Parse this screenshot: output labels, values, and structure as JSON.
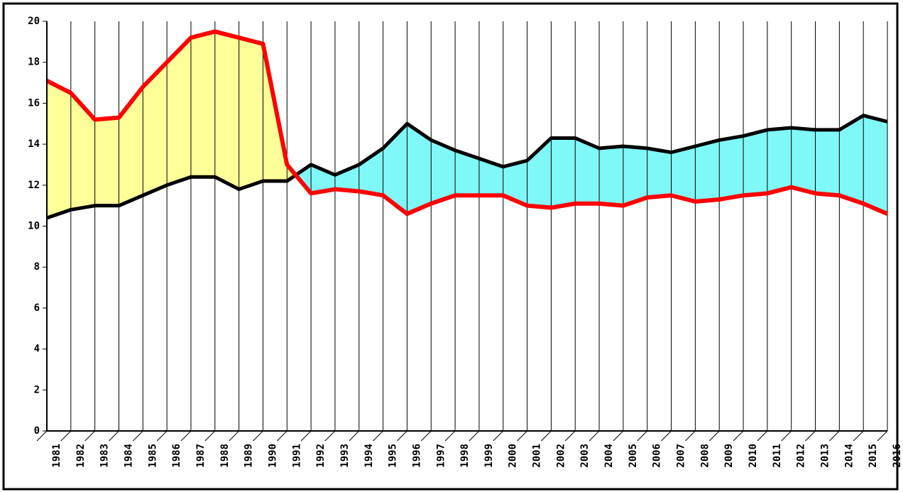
{
  "chart_data": {
    "type": "line",
    "categories": [
      "1981",
      "1982",
      "1983",
      "1984",
      "1985",
      "1986",
      "1987",
      "1988",
      "1989",
      "1990",
      "1991",
      "1992",
      "1993",
      "1994",
      "1995",
      "1996",
      "1997",
      "1998",
      "1999",
      "2000",
      "2001",
      "2002",
      "2003",
      "2004",
      "2005",
      "2006",
      "2007",
      "2008",
      "2009",
      "2010",
      "2011",
      "2012",
      "2013",
      "2014",
      "2015",
      "2016"
    ],
    "series": [
      {
        "color": "#ff0000",
        "fill": "#ffff99",
        "values": [
          17.1,
          16.5,
          15.2,
          15.3,
          16.8,
          18.0,
          19.2,
          19.5,
          19.2,
          18.9,
          13.0,
          11.6,
          11.8,
          11.7,
          11.5,
          10.6,
          11.1,
          11.5,
          11.5,
          11.5,
          11.0,
          10.9,
          11.1,
          11.1,
          11.0,
          11.4,
          11.5,
          11.2,
          11.3,
          11.5,
          11.6,
          11.9,
          11.6,
          11.5,
          11.1,
          10.6
        ]
      },
      {
        "color": "#000000",
        "fill": "#80f8f8",
        "values": [
          10.4,
          10.8,
          11.0,
          11.0,
          11.5,
          12.0,
          12.4,
          12.4,
          11.8,
          12.2,
          12.2,
          13.0,
          12.5,
          13.0,
          13.8,
          15.0,
          14.2,
          13.7,
          13.3,
          12.9,
          13.2,
          14.3,
          14.3,
          13.8,
          13.9,
          13.8,
          13.6,
          13.9,
          14.2,
          14.4,
          14.7,
          14.8,
          14.7,
          14.7,
          15.4,
          15.1
        ]
      }
    ],
    "ylim": [
      0,
      20
    ],
    "yticks": [
      0,
      2,
      4,
      6,
      8,
      10,
      12,
      14,
      16,
      18,
      20
    ],
    "grid": true
  }
}
